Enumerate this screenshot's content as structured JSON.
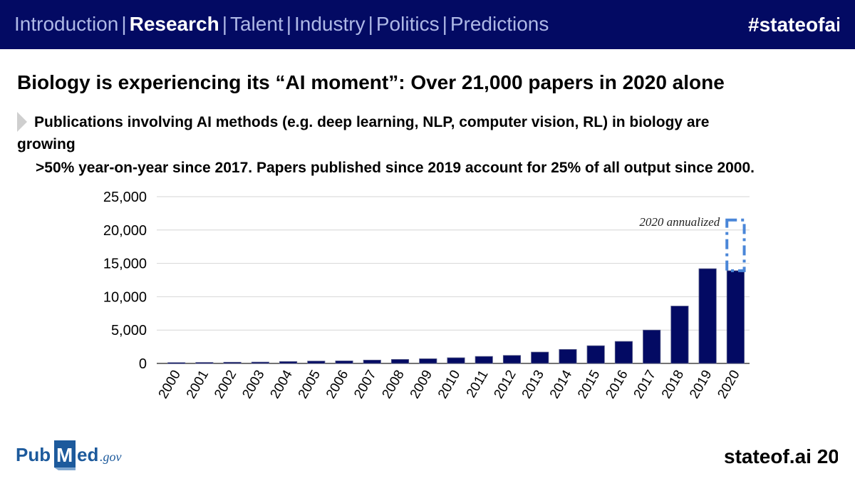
{
  "header": {
    "nav": [
      {
        "label": "Introduction",
        "active": false
      },
      {
        "label": "Research",
        "active": true
      },
      {
        "label": "Talent",
        "active": false
      },
      {
        "label": "Industry",
        "active": false
      },
      {
        "label": "Politics",
        "active": false
      },
      {
        "label": "Predictions",
        "active": false
      }
    ],
    "separator": "|",
    "hashtag": "#stateofai",
    "bar_color": "#030a63"
  },
  "title": "Biology is experiencing its “AI moment”: Over 21,000 papers in 2020 alone",
  "subtitle": {
    "line1": "Publications involving AI methods (e.g. deep learning, NLP, computer vision, RL) in biology are",
    "line2": "growing",
    "line3": ">50% year-on-year since 2017. Papers published since 2019 account for 25% of all output since 2000."
  },
  "chart_data": {
    "type": "bar",
    "categories": [
      "2000",
      "2001",
      "2002",
      "2003",
      "2004",
      "2005",
      "2006",
      "2007",
      "2008",
      "2009",
      "2010",
      "2011",
      "2012",
      "2013",
      "2014",
      "2015",
      "2016",
      "2017",
      "2018",
      "2019",
      "2020"
    ],
    "values": [
      120,
      150,
      180,
      200,
      280,
      350,
      380,
      500,
      600,
      700,
      850,
      1050,
      1200,
      1700,
      2100,
      2650,
      3300,
      5000,
      8600,
      14200,
      13900
    ],
    "annualized": {
      "category": "2020",
      "value": 21500,
      "label": "2020 annualized"
    },
    "yticks": [
      "0",
      "5,000",
      "10,000",
      "15,000",
      "20,000",
      "25,000"
    ],
    "ylim": [
      0,
      25000
    ],
    "grid": true,
    "bar_color": "#030a63",
    "annualized_color": "#4a86d8"
  },
  "logo": {
    "pub": "Pub",
    "m": "M",
    "ed": "ed",
    "gov": ".gov",
    "color": "#1d5a9c"
  },
  "footer": "stateof.ai 2020"
}
